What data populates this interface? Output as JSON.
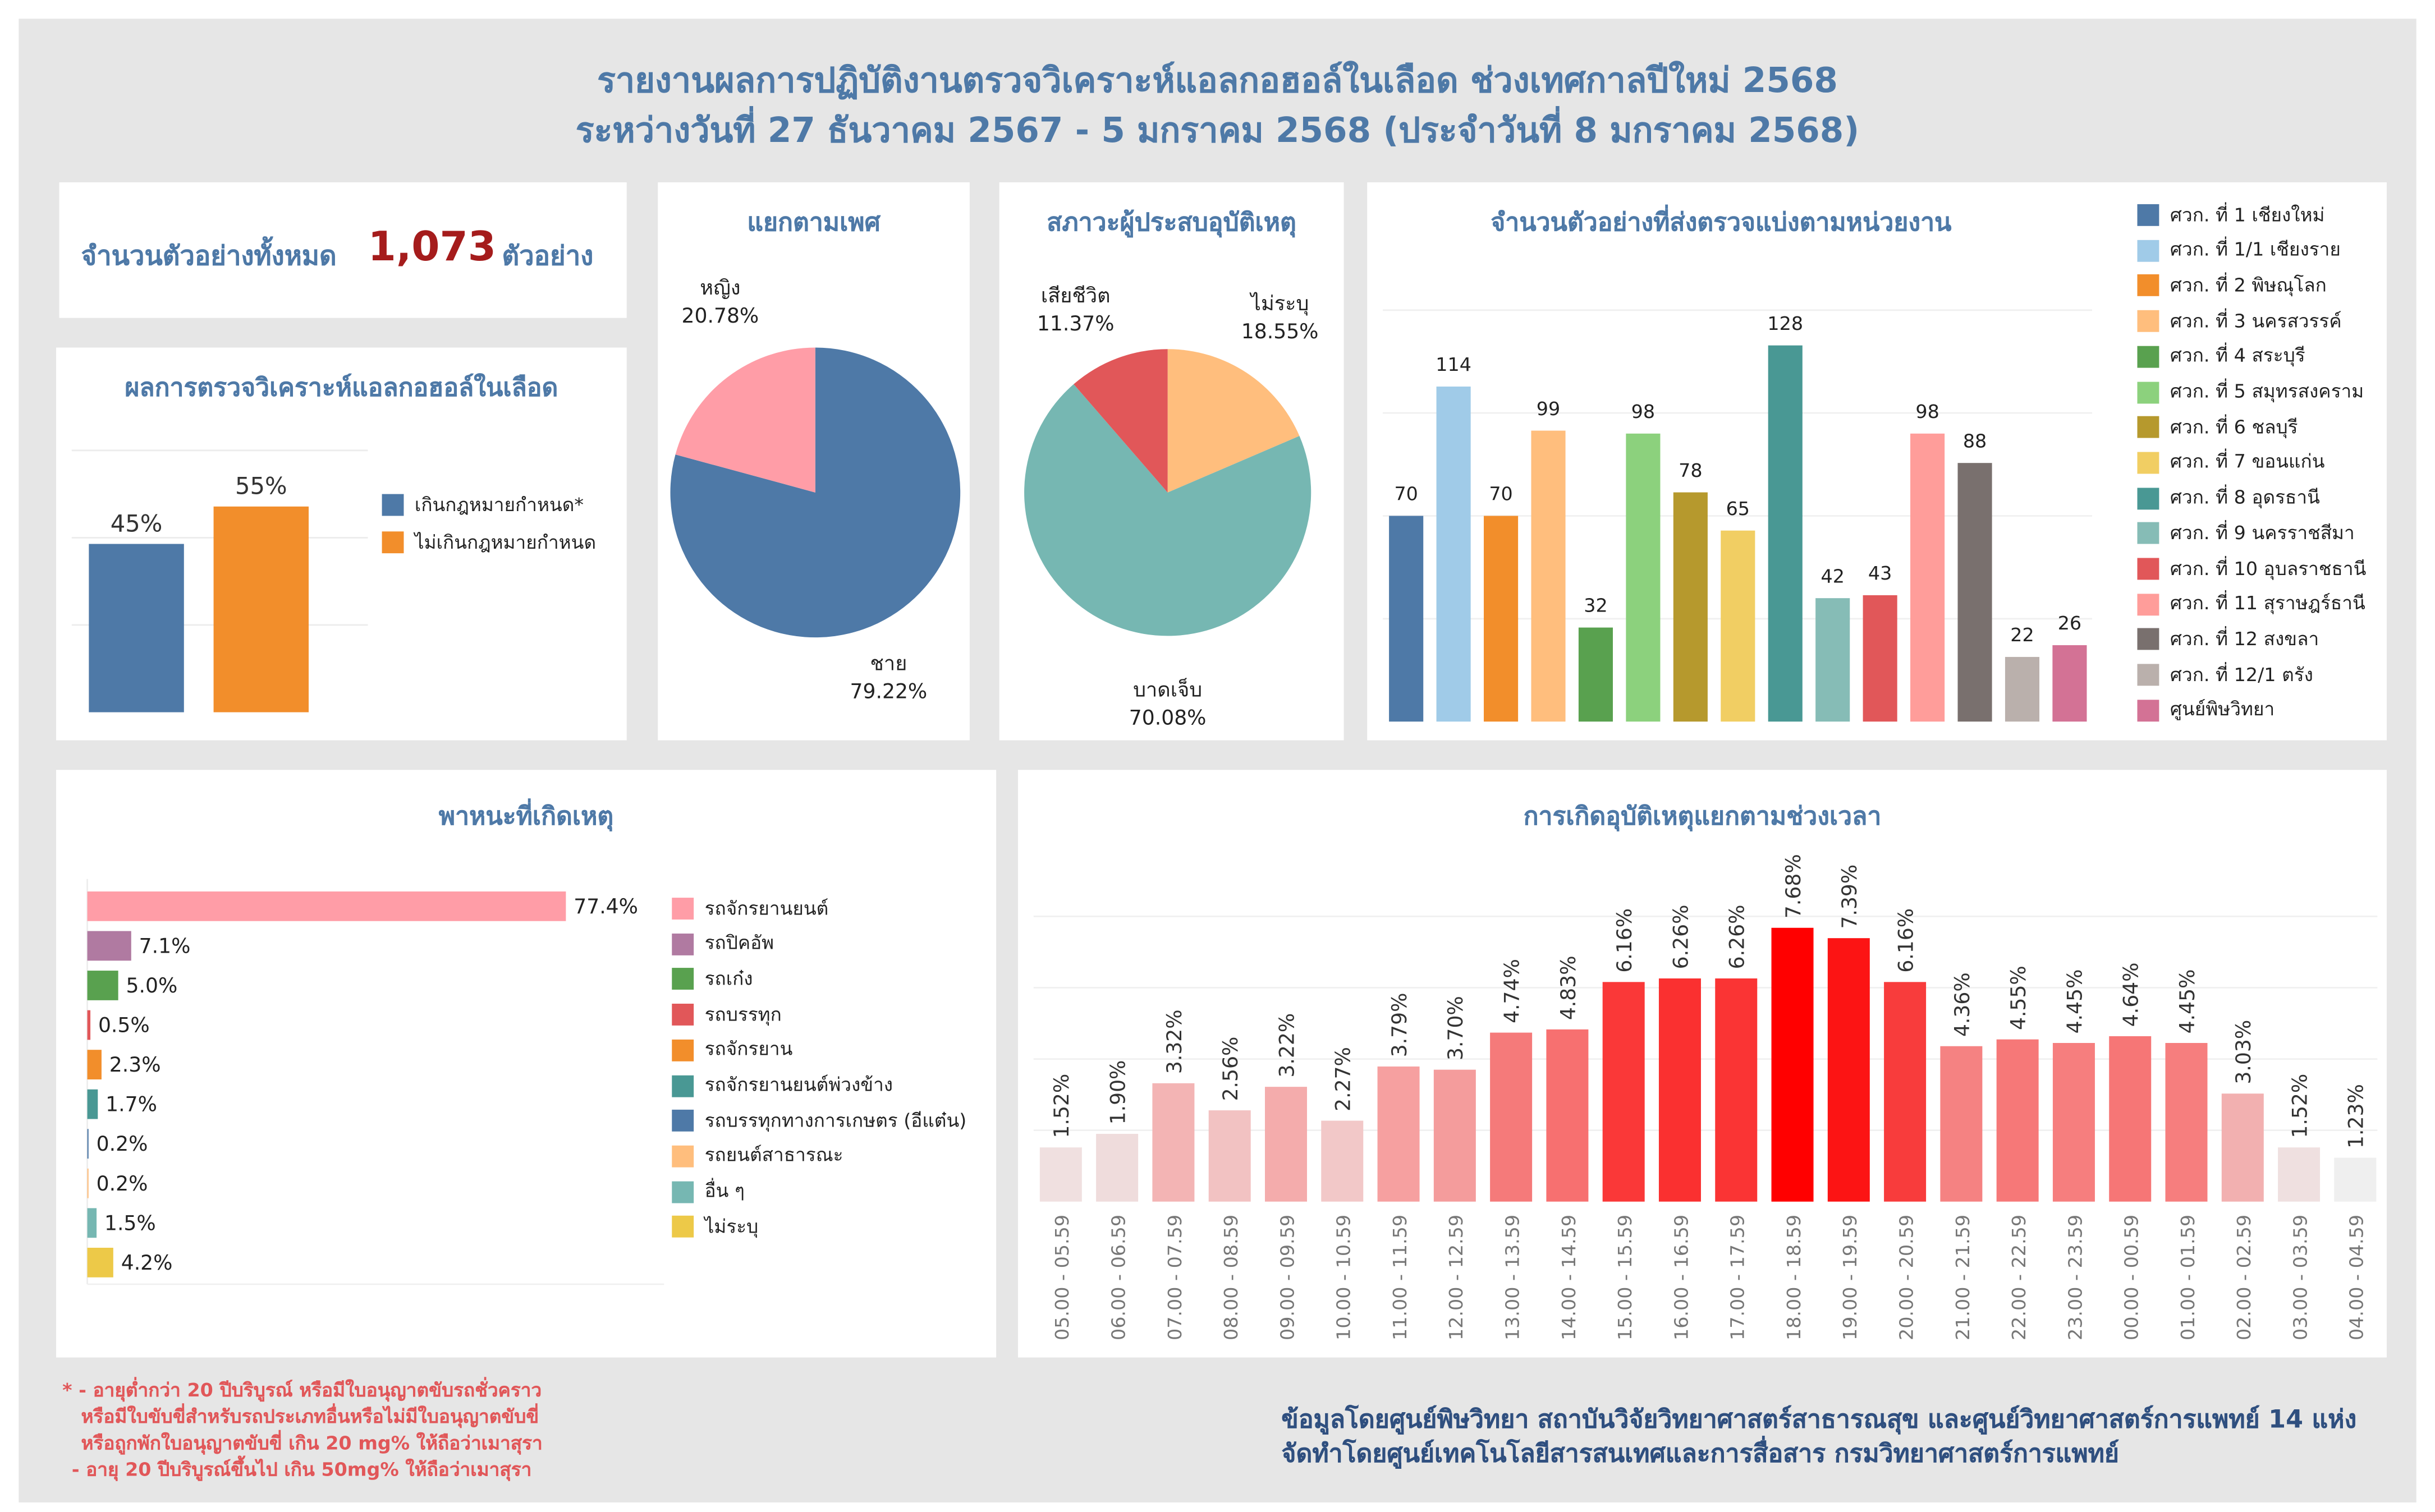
{
  "header": {
    "line1": "รายงานผลการปฏิบัติงานตรวจวิเคราะห์แอลกอฮอล์ในเลือด ช่วงเทศกาลปีใหม่ 2568",
    "line2": "ระหว่างวันที่ 27 ธันวาคม 2567 - 5 มกราคม 2568 (ประจำวันที่ 8 มกราคม 2568)"
  },
  "total": {
    "label": "จำนวนตัวอย่างทั้งหมด",
    "value": "1,073",
    "unit": "ตัวอย่าง"
  },
  "colors": {
    "title": "#4e79a7",
    "total_value": "#a51c1c",
    "background": "#e6e6e6",
    "footnote": "#e15759"
  },
  "chart_data": [
    {
      "id": "alcohol_result",
      "type": "bar",
      "title": "ผลการตรวจวิเคราะห์แอลกอฮอล์ในเลือด",
      "categories": [
        "เกินกฎหมายกำหนด*",
        "ไม่เกินกฎหมายกำหนด"
      ],
      "values": [
        45,
        55
      ],
      "labels": [
        "45%",
        "55%"
      ],
      "colors": [
        "#4e79a7",
        "#f28e2b"
      ],
      "ylim": [
        0,
        70
      ],
      "grid": true,
      "legend": "right"
    },
    {
      "id": "gender",
      "type": "pie",
      "title": "แยกตามเพศ",
      "slices": [
        {
          "label": "ชาย",
          "value": 79.22,
          "display": "79.22%",
          "color": "#4e79a7"
        },
        {
          "label": "หญิง",
          "value": 20.78,
          "display": "20.78%",
          "color": "#ff9da7"
        }
      ]
    },
    {
      "id": "victim_status",
      "type": "pie",
      "title": "สภาวะผู้ประสบอุบัติเหตุ",
      "slices": [
        {
          "label": "ไม่ระบุ",
          "value": 18.55,
          "display": "18.55%",
          "color": "#ffbe7d"
        },
        {
          "label": "บาดเจ็บ",
          "value": 70.08,
          "display": "70.08%",
          "color": "#76b7b2"
        },
        {
          "label": "เสียชีวิต",
          "value": 11.37,
          "display": "11.37%",
          "color": "#e15759"
        }
      ]
    },
    {
      "id": "by_unit",
      "type": "bar",
      "title": "จำนวนตัวอย่างที่ส่งตรวจแบ่งตามหน่วยงาน",
      "categories": [
        "ศวก. ที่ 1 เชียงใหม่",
        "ศวก. ที่ 1/1 เชียงราย",
        "ศวก. ที่ 2 พิษณุโลก",
        "ศวก. ที่ 3 นครสวรรค์",
        "ศวก. ที่ 4 สระบุรี",
        "ศวก. ที่ 5 สมุทรสงคราม",
        "ศวก. ที่ 6 ชลบุรี",
        "ศวก. ที่ 7 ขอนแก่น",
        "ศวก. ที่ 8 อุดรธานี",
        "ศวก. ที่ 9 นครราชสีมา",
        "ศวก. ที่ 10 อุบลราชธานี",
        "ศวก. ที่ 11 สุราษฎร์ธานี",
        "ศวก. ที่ 12 สงขลา",
        "ศวก. ที่ 12/1 ตรัง",
        "ศูนย์พิษวิทยา"
      ],
      "values": [
        70,
        114,
        70,
        99,
        32,
        98,
        78,
        65,
        128,
        42,
        43,
        98,
        88,
        22,
        26
      ],
      "colors": [
        "#4e79a7",
        "#a0cbe8",
        "#f28e2b",
        "#ffbe7d",
        "#59a14f",
        "#8cd17d",
        "#b6992d",
        "#f1ce63",
        "#499894",
        "#86bcb6",
        "#e15759",
        "#ff9d9a",
        "#79706e",
        "#bab0ac",
        "#d37295"
      ],
      "ylim": [
        0,
        140
      ],
      "grid": true,
      "legend": "right"
    },
    {
      "id": "vehicle",
      "type": "bar",
      "orientation": "horizontal",
      "title": "พาหนะที่เกิดเหตุ",
      "categories": [
        "รถจักรยานยนต์",
        "รถปิคอัพ",
        "รถเก๋ง",
        "รถบรรทุก",
        "รถจักรยาน",
        "รถจักรยานยนต์พ่วงข้าง",
        "รถบรรทุกทางการเกษตร (อีแต๋น)",
        "รถยนต์สาธารณะ",
        "อื่น ๆ",
        "ไม่ระบุ"
      ],
      "values": [
        77.4,
        7.1,
        5.0,
        0.5,
        2.3,
        1.7,
        0.2,
        0.2,
        1.5,
        4.2
      ],
      "labels": [
        "77.4%",
        "7.1%",
        "5.0%",
        "0.5%",
        "2.3%",
        "1.7%",
        "0.2%",
        "0.2%",
        "1.5%",
        "4.2%"
      ],
      "colors": [
        "#ff9da7",
        "#b07aa1",
        "#59a14f",
        "#e15759",
        "#f28e2b",
        "#499894",
        "#4e79a7",
        "#ffbe7d",
        "#76b7b2",
        "#edc948"
      ],
      "xlim": [
        0,
        100
      ],
      "legend": "right"
    },
    {
      "id": "by_time",
      "type": "bar",
      "title": "การเกิดอุบัติเหตุแยกตามช่วงเวลา",
      "categories": [
        "05.00 - 05.59",
        "06.00 - 06.59",
        "07.00 - 07.59",
        "08.00 - 08.59",
        "09.00 - 09.59",
        "10.00 - 10.59",
        "11.00 - 11.59",
        "12.00 - 12.59",
        "13.00 - 13.59",
        "14.00 - 14.59",
        "15.00 - 15.59",
        "16.00 - 16.59",
        "17.00 - 17.59",
        "18.00 - 18.59",
        "19.00 - 19.59",
        "20.00 - 20.59",
        "21.00 - 21.59",
        "22.00 - 22.59",
        "23.00 - 23.59",
        "00.00 - 00.59",
        "01.00 - 01.59",
        "02.00 - 02.59",
        "03.00 - 03.59",
        "04.00 - 04.59"
      ],
      "values": [
        1.52,
        1.9,
        3.32,
        2.56,
        3.22,
        2.27,
        3.79,
        3.7,
        4.74,
        4.83,
        6.16,
        6.26,
        6.26,
        7.68,
        7.39,
        6.16,
        4.36,
        4.55,
        4.45,
        4.64,
        4.45,
        3.03,
        1.52,
        1.23
      ],
      "labels": [
        "1.52%",
        "1.90%",
        "3.32%",
        "2.56%",
        "3.22%",
        "2.27%",
        "3.79%",
        "3.70%",
        "4.74%",
        "4.83%",
        "6.16%",
        "6.26%",
        "6.26%",
        "7.68%",
        "7.39%",
        "6.16%",
        "4.36%",
        "4.55%",
        "4.45%",
        "4.64%",
        "4.45%",
        "3.03%",
        "1.52%",
        "1.23%"
      ],
      "colors": [
        "#f0e0e0",
        "#efdcdc",
        "#f3b4b4",
        "#f2c2c2",
        "#f4acac",
        "#f2c8c8",
        "#f6a0a0",
        "#f49c9c",
        "#f57a7a",
        "#f77070",
        "#fa3838",
        "#fa3030",
        "#fa3434",
        "#ff0000",
        "#fc1414",
        "#f83c3c",
        "#f58282",
        "#f67878",
        "#f67e7e",
        "#f67676",
        "#f67e7e",
        "#f2b0b0",
        "#efe0e0",
        "#efefef"
      ],
      "ylim": [
        0,
        8
      ],
      "grid": true
    }
  ],
  "footnote_left": [
    "* - อายุต่ำกว่า 20 ปีบริบูรณ์ หรือมีใบอนุญาตขับรถชั่วคราว",
    "หรือมีใบขับขี่สำหรับรถประเภทอื่นหรือไม่มีใบอนุญาตขับขี่",
    "หรือถูกพักใบอนุญาตขับขี่ เกิน 20 mg% ให้ถือว่าเมาสุรา",
    "- อายุ 20 ปีบริบูรณ์ขึ้นไป เกิน 50mg% ให้ถือว่าเมาสุรา"
  ],
  "footnote_right": [
    "ข้อมูลโดยศูนย์พิษวิทยา สถาบันวิจัยวิทยาศาสตร์สาธารณสุข และศูนย์วิทยาศาสตร์การแพทย์ 14 แห่ง",
    "จัดทำโดยศูนย์เทคโนโลยีสารสนเทศและการสื่อสาร กรมวิทยาศาสตร์การแพทย์"
  ]
}
